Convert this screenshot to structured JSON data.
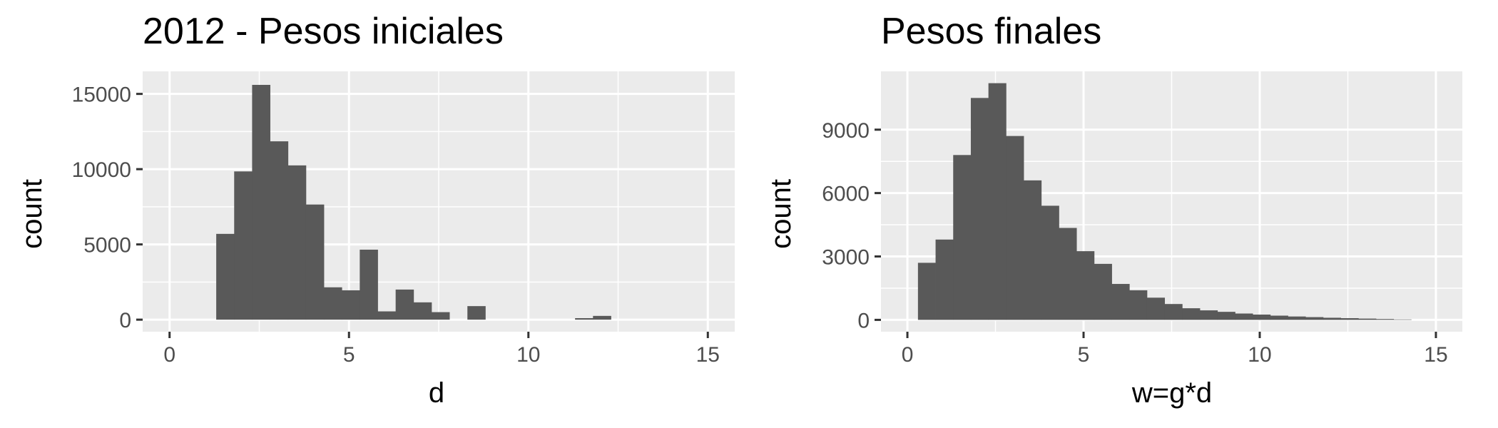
{
  "chart_data": [
    {
      "type": "histogram",
      "title": "2012 - Pesos iniciales",
      "xlabel": "d",
      "ylabel": "count",
      "xlim": [
        -0.75,
        15.75
      ],
      "ylim": [
        -800,
        16500
      ],
      "x_ticks": [
        0,
        5,
        10,
        15
      ],
      "y_ticks": [
        0,
        5000,
        10000,
        15000
      ],
      "x_tick_labels": [
        "0",
        "5",
        "10",
        "15"
      ],
      "y_tick_labels": [
        "0",
        "5000",
        "10000",
        "15000"
      ],
      "grid": true,
      "bin_width": 0.5,
      "bin_start": 1.3,
      "values": [
        5700,
        9850,
        15600,
        11850,
        10250,
        7650,
        2150,
        1950,
        4650,
        550,
        2000,
        1150,
        500,
        0,
        900,
        0,
        0,
        0,
        0,
        0,
        100,
        250
      ],
      "colors": {
        "bar": "#595959",
        "panel": "#ebebeb",
        "grid": "#ffffff",
        "tick": "#4d4d4d"
      }
    },
    {
      "type": "histogram",
      "title": "Pesos finales",
      "xlabel": "w=g*d",
      "ylabel": "count",
      "xlim": [
        -0.75,
        15.75
      ],
      "ylim": [
        -560,
        11760
      ],
      "x_ticks": [
        0,
        5,
        10,
        15
      ],
      "y_ticks": [
        0,
        3000,
        6000,
        9000
      ],
      "x_tick_labels": [
        "0",
        "5",
        "10",
        "15"
      ],
      "y_tick_labels": [
        "0",
        "3000",
        "6000",
        "9000"
      ],
      "grid": true,
      "bin_width": 0.5,
      "bin_start": 0.3,
      "values": [
        2700,
        3800,
        7800,
        10500,
        11200,
        8700,
        6600,
        5400,
        4350,
        3250,
        2650,
        1700,
        1400,
        1050,
        750,
        550,
        450,
        380,
        300,
        250,
        200,
        160,
        130,
        100,
        80,
        60,
        40,
        20
      ],
      "colors": {
        "bar": "#595959",
        "panel": "#ebebeb",
        "grid": "#ffffff",
        "tick": "#4d4d4d"
      }
    }
  ]
}
